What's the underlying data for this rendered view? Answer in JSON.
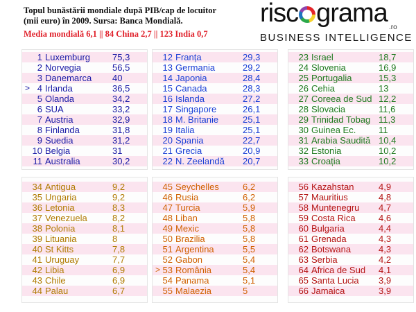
{
  "header": {
    "title_line1": "Topul bunăstării mondiale după PIB/cap de locuitor",
    "title_line2": "(mii euro) în 2009. Sursa: Banca Mondială.",
    "subtitle": "Media mondială 6,1 || 84 China 2,7 || 123 India 0,7"
  },
  "logo": {
    "word_left": "risc",
    "word_right": "grama",
    "suffix": ".ro",
    "tagline": "BUSINESS INTELLIGENCE"
  },
  "colors": {
    "g1": "#1a1aa6",
    "g2": "#1a3fd6",
    "g3": "#1f7a1f",
    "g4": "#b07a00",
    "g5": "#d06000",
    "g6": "#b51414",
    "row_highlight": "#fbe4ef",
    "subtitle": "#e0202a"
  },
  "chart_data": {
    "type": "table",
    "title": "Topul bunăstării mondiale după PIB/cap de locuitor (mii euro) în 2009. Sursa: Banca Mondială.",
    "columns": [
      "rank",
      "country",
      "value"
    ],
    "groups": [
      {
        "rows": [
          {
            "rank": 1,
            "country": "Luxemburg",
            "value": "75,3"
          },
          {
            "rank": 2,
            "country": "Norvegia",
            "value": "56,5"
          },
          {
            "rank": 3,
            "country": "Danemarca",
            "value": "40"
          },
          {
            "rank": 4,
            "country": "Irlanda",
            "value": "36,5",
            "marker": ">"
          },
          {
            "rank": 5,
            "country": "Olanda",
            "value": "34,2"
          },
          {
            "rank": 6,
            "country": "SUA",
            "value": "33,2"
          },
          {
            "rank": 7,
            "country": "Austria",
            "value": "32,9"
          },
          {
            "rank": 8,
            "country": "Finlanda",
            "value": "31,8"
          },
          {
            "rank": 9,
            "country": "Suedia",
            "value": "31,2"
          },
          {
            "rank": 10,
            "country": "Belgia",
            "value": "31"
          },
          {
            "rank": 11,
            "country": "Australia",
            "value": "30,2"
          }
        ]
      },
      {
        "rows": [
          {
            "rank": 12,
            "country": "Franța",
            "value": "29,3"
          },
          {
            "rank": 13,
            "country": "Germania",
            "value": "29,2"
          },
          {
            "rank": 14,
            "country": "Japonia",
            "value": "28,4"
          },
          {
            "rank": 15,
            "country": "Canada",
            "value": "28,3"
          },
          {
            "rank": 16,
            "country": "Islanda",
            "value": "27,2"
          },
          {
            "rank": 17,
            "country": "Singapore",
            "value": "26,1"
          },
          {
            "rank": 18,
            "country": "M. Britanie",
            "value": "25,1"
          },
          {
            "rank": 19,
            "country": "Italia",
            "value": "25,1"
          },
          {
            "rank": 20,
            "country": "Spania",
            "value": "22,7"
          },
          {
            "rank": 21,
            "country": "Grecia",
            "value": "20,9"
          },
          {
            "rank": 22,
            "country": "N. Zeelandă",
            "value": "20,7"
          }
        ]
      },
      {
        "rows": [
          {
            "rank": 23,
            "country": "Israel",
            "value": "18,7"
          },
          {
            "rank": 24,
            "country": "Slovenia",
            "value": "16,9"
          },
          {
            "rank": 25,
            "country": "Portugalia",
            "value": "15,3"
          },
          {
            "rank": 26,
            "country": "Cehia",
            "value": "13"
          },
          {
            "rank": 27,
            "country": "Coreea de Sud",
            "value": "12,2"
          },
          {
            "rank": 28,
            "country": "Slovacia",
            "value": "11,6"
          },
          {
            "rank": 29,
            "country": "Trinidad Tobag",
            "value": "11,3"
          },
          {
            "rank": 30,
            "country": "Guinea Ec.",
            "value": "11"
          },
          {
            "rank": 31,
            "country": "Arabia Saudită",
            "value": "10,4"
          },
          {
            "rank": 32,
            "country": "Estonia",
            "value": "10,2"
          },
          {
            "rank": 33,
            "country": "Croația",
            "value": "10,2"
          }
        ]
      },
      {
        "rows": [
          {
            "rank": 34,
            "country": "Antigua",
            "value": "9,2"
          },
          {
            "rank": 35,
            "country": "Ungaria",
            "value": "9,2"
          },
          {
            "rank": 36,
            "country": "Letonia",
            "value": "8,3"
          },
          {
            "rank": 37,
            "country": "Venezuela",
            "value": "8,2"
          },
          {
            "rank": 38,
            "country": "Polonia",
            "value": "8,1"
          },
          {
            "rank": 39,
            "country": "Lituania",
            "value": "8"
          },
          {
            "rank": 40,
            "country": "St Kitts",
            "value": "7,8"
          },
          {
            "rank": 41,
            "country": "Uruguay",
            "value": "7,7"
          },
          {
            "rank": 42,
            "country": "Libia",
            "value": "6,9"
          },
          {
            "rank": 43,
            "country": "Chile",
            "value": "6,9"
          },
          {
            "rank": 44,
            "country": "Palau",
            "value": "6,7"
          }
        ]
      },
      {
        "rows": [
          {
            "rank": 45,
            "country": "Seychelles",
            "value": "6,2"
          },
          {
            "rank": 46,
            "country": "Rusia",
            "value": "6,2"
          },
          {
            "rank": 47,
            "country": "Turcia",
            "value": "5,9"
          },
          {
            "rank": 48,
            "country": "Liban",
            "value": "5,8"
          },
          {
            "rank": 49,
            "country": "Mexic",
            "value": "5,8"
          },
          {
            "rank": 50,
            "country": "Brazilia",
            "value": "5,8"
          },
          {
            "rank": 51,
            "country": "Argentina",
            "value": "5,5"
          },
          {
            "rank": 52,
            "country": "Gabon",
            "value": "5,4"
          },
          {
            "rank": 53,
            "country": "România",
            "value": "5,4",
            "marker": ">"
          },
          {
            "rank": 54,
            "country": "Panama",
            "value": "5,1"
          },
          {
            "rank": 55,
            "country": "Malaezia",
            "value": "5"
          }
        ]
      },
      {
        "rows": [
          {
            "rank": 56,
            "country": "Kazahstan",
            "value": "4,9"
          },
          {
            "rank": 57,
            "country": "Mauritius",
            "value": "4,8"
          },
          {
            "rank": 58,
            "country": "Muntenegru",
            "value": "4,7"
          },
          {
            "rank": 59,
            "country": "Costa Rica",
            "value": "4,6"
          },
          {
            "rank": 60,
            "country": "Bulgaria",
            "value": "4,4"
          },
          {
            "rank": 61,
            "country": "Grenada",
            "value": "4,3"
          },
          {
            "rank": 62,
            "country": "Botswana",
            "value": "4,3"
          },
          {
            "rank": 63,
            "country": "Serbia",
            "value": "4,2"
          },
          {
            "rank": 64,
            "country": "Africa de Sud",
            "value": "4,1"
          },
          {
            "rank": 65,
            "country": "Santa Lucia",
            "value": "3,9"
          },
          {
            "rank": 66,
            "country": "Jamaica",
            "value": "3,9"
          }
        ]
      }
    ]
  }
}
